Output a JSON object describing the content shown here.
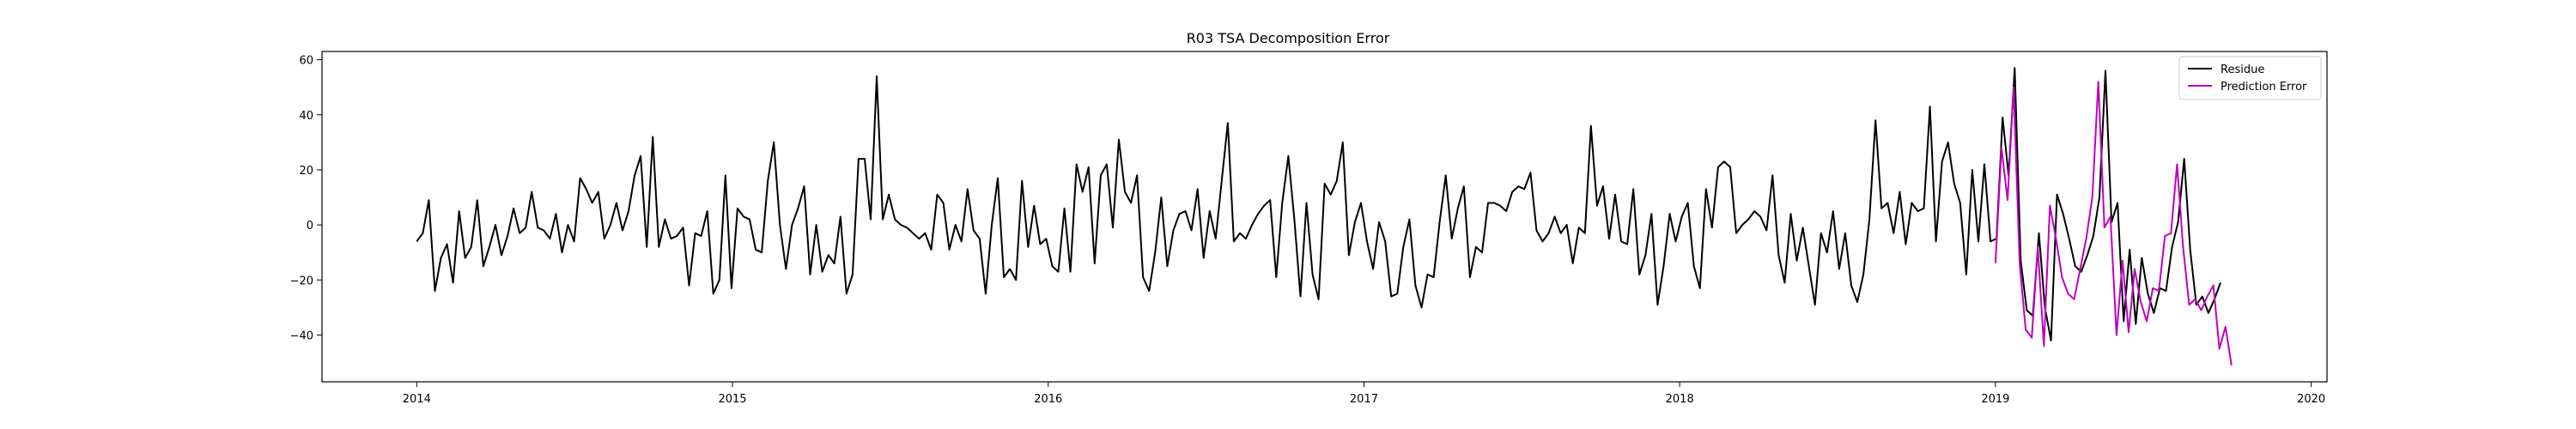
{
  "chart_data": {
    "type": "line",
    "title": "R03 TSA Decomposition Error",
    "xlabel": "",
    "ylabel": "",
    "xlim": [
      2013.7,
      2020.05
    ],
    "ylim": [
      -57,
      63
    ],
    "x_ticks": [
      2014,
      2015,
      2016,
      2017,
      2018,
      2019,
      2020
    ],
    "x_tick_labels": [
      "2014",
      "2015",
      "2016",
      "2017",
      "2018",
      "2019",
      "2020"
    ],
    "y_ticks": [
      -40,
      -20,
      0,
      20,
      40,
      60
    ],
    "y_tick_labels": [
      "−40",
      "−20",
      "0",
      "20",
      "40",
      "60"
    ],
    "grid": false,
    "legend_position": "top-right",
    "series": [
      {
        "name": "Residue",
        "color": "#000000",
        "x_start": 2014.0,
        "x_step": 0.01917,
        "values": [
          -6,
          -3,
          9,
          -24,
          -12,
          -7,
          -21,
          5,
          -12,
          -8,
          9,
          -15,
          -8,
          0,
          -11,
          -4,
          6,
          -3,
          -1,
          12,
          -1,
          -2,
          -5,
          4,
          -10,
          0,
          -6,
          17,
          13,
          8,
          12,
          -5,
          0,
          8,
          -2,
          5,
          18,
          25,
          -8,
          32,
          -8,
          2,
          -5,
          -4,
          -1,
          -22,
          -3,
          -4,
          5,
          -25,
          -20,
          18,
          -23,
          6,
          3,
          2,
          -9,
          -10,
          16,
          30,
          0,
          -16,
          0,
          6,
          14,
          -18,
          0,
          -17,
          -11,
          -14,
          3,
          -25,
          -18,
          24,
          24,
          2,
          54,
          2,
          11,
          2,
          0,
          -1,
          -3,
          -5,
          -3,
          -9,
          11,
          8,
          -9,
          0,
          -6,
          13,
          -2,
          -5,
          -25,
          0,
          17,
          -19,
          -16,
          -20,
          16,
          -8,
          7,
          -7,
          -5,
          -15,
          -17,
          6,
          -17,
          22,
          12,
          21,
          -14,
          18,
          22,
          -1,
          31,
          12,
          8,
          18,
          -19,
          -24,
          -10,
          10,
          -15,
          -2,
          4,
          5,
          -2,
          13,
          -12,
          5,
          -5,
          16,
          37,
          -6,
          -3,
          -5,
          0,
          4,
          7,
          9,
          -19,
          8,
          25,
          2,
          -26,
          8,
          -18,
          -27,
          15,
          11,
          16,
          30,
          -11,
          1,
          8,
          -6,
          -16,
          1,
          -6,
          -26,
          -25,
          -8,
          2,
          -22,
          -30,
          -18,
          -19,
          1,
          18,
          -5,
          6,
          14,
          -19,
          -8,
          -10,
          8,
          8,
          7,
          5,
          12,
          14,
          13,
          19,
          -2,
          -6,
          -3,
          3,
          -3,
          0,
          -14,
          -1,
          -3,
          36,
          7,
          14,
          -5,
          11,
          -6,
          -7,
          13,
          -18,
          -11,
          4,
          -29,
          -15,
          4,
          -6,
          3,
          8,
          -15,
          -23,
          13,
          -1,
          21,
          23,
          21,
          -3,
          0,
          2,
          5,
          3,
          -2,
          18,
          -11,
          -21,
          4,
          -13,
          -1,
          -15,
          -29,
          -3,
          -10,
          5,
          -16,
          -3,
          -22,
          -28,
          -18,
          2,
          38,
          6,
          8,
          -3,
          12,
          -7,
          8,
          5,
          6,
          43,
          -6,
          23,
          30,
          15,
          8,
          -18,
          20,
          -6,
          22,
          -6,
          -5,
          39,
          18,
          57,
          -13,
          -31,
          -33,
          -3,
          -30,
          -42,
          11,
          4,
          -5,
          -15,
          -17,
          -11,
          -4,
          10,
          56,
          1,
          8,
          -35,
          -9,
          -36,
          -12,
          -25,
          -32,
          -23,
          -24,
          -8,
          1,
          24,
          -9,
          -29,
          -26,
          -32,
          -27,
          -21
        ]
      },
      {
        "name": "Prediction Error",
        "color": "#bf00bf",
        "x_start": 2019.0,
        "x_step": 0.01917,
        "values": [
          -14,
          28,
          9,
          50,
          -14,
          -38,
          -41,
          -8,
          -44,
          7,
          -5,
          -19,
          -25,
          -27,
          -16,
          -5,
          10,
          52,
          -1,
          3,
          -40,
          -13,
          -39,
          -16,
          -28,
          -35,
          -23,
          -24,
          -4,
          -3,
          22,
          -8,
          -29,
          -27,
          -31,
          -26,
          -22,
          -45,
          -37,
          -51
        ]
      }
    ]
  }
}
